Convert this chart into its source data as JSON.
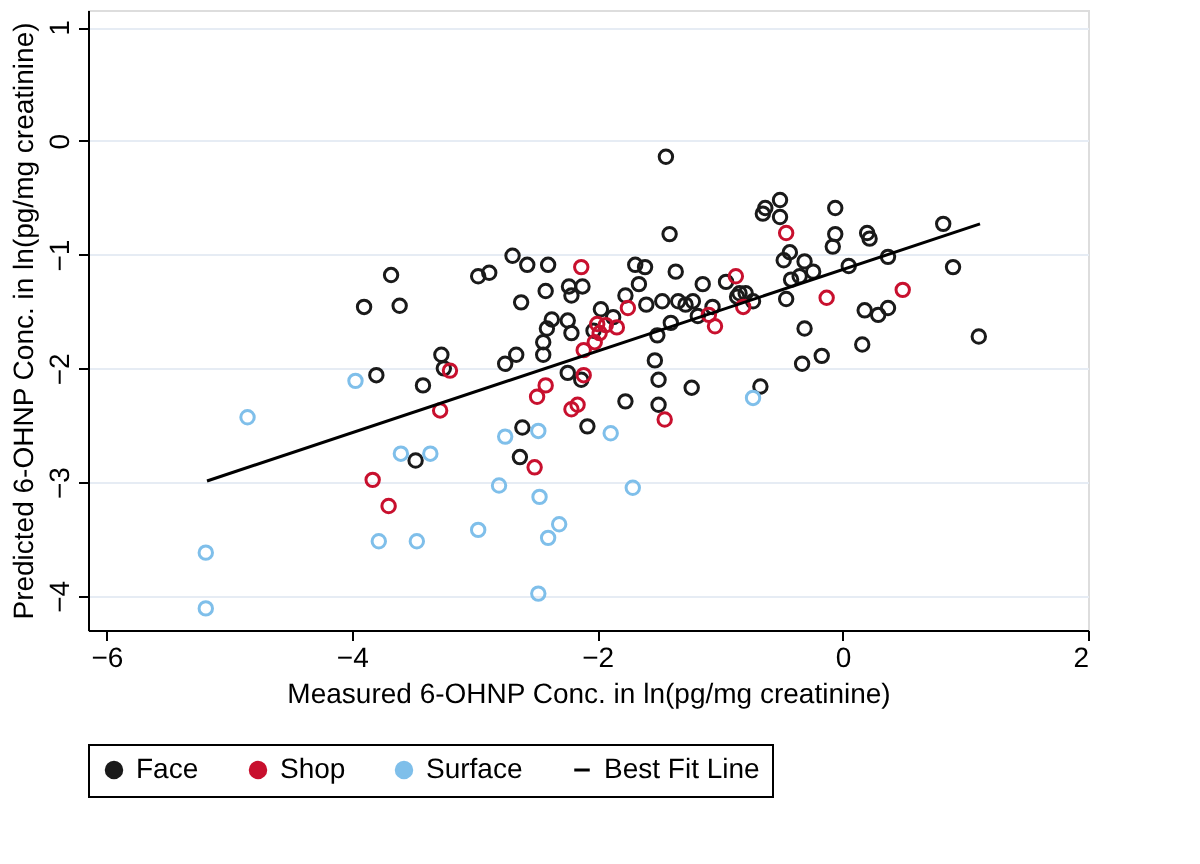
{
  "chart_data": {
    "type": "scatter",
    "xlabel": "Measured 6-OHNP Conc. in ln(pg/mg creatinine)",
    "ylabel": "Predicted 6-OHNP Conc. in ln(pg/mg creatinine)",
    "xlim": [
      -6.15,
      2.0
    ],
    "ylim": [
      -4.3,
      1.15
    ],
    "xticks": [
      -6,
      -4,
      -2,
      0,
      2
    ],
    "yticks": [
      -4,
      -3,
      -2,
      -1,
      0,
      1
    ],
    "grid": "y",
    "legend": "bottom",
    "series": [
      {
        "name": "Face",
        "marker": "circle",
        "color": "#1a1a1a",
        "x": [
          -2.69,
          -2.57,
          -2.4,
          -2.97,
          -2.88,
          -3.68,
          -3.9,
          -3.61,
          -2.42,
          -2.23,
          -2.12,
          -2.21,
          -2.62,
          -2.37,
          -2.24,
          -2.41,
          -2.21,
          -2.44,
          -2.44,
          -2.66,
          -2.75,
          -3.27,
          -3.25,
          -3.8,
          -3.42,
          -2.24,
          -2.13,
          -2.08,
          -2.61,
          -2.63,
          -3.48,
          -1.44,
          -0.51,
          -0.63,
          -0.65,
          -0.51,
          -0.06,
          -1.41,
          -0.06,
          -0.08,
          0.2,
          0.22,
          0.82,
          0.9,
          0.37,
          0.05,
          -0.43,
          -0.48,
          -0.31,
          -0.24,
          -0.35,
          -0.42,
          -1.69,
          -1.61,
          -1.36,
          -1.66,
          -1.14,
          -0.95,
          -0.84,
          -0.79,
          -0.86,
          -0.73,
          -0.46,
          -1.77,
          -1.47,
          -1.34,
          -1.28,
          -1.22,
          -1.6,
          -1.06,
          -1.18,
          -1.4,
          -1.51,
          -1.97,
          -1.87,
          -2.03,
          -0.31,
          0.18,
          0.29,
          0.37,
          1.11,
          0.16,
          -0.17,
          -0.33,
          -1.53,
          -1.5,
          -1.23,
          -0.67,
          -1.77,
          -1.5
        ],
        "values": [
          -1.01,
          -1.09,
          -1.09,
          -1.19,
          -1.16,
          -1.18,
          -1.46,
          -1.45,
          -1.32,
          -1.28,
          -1.28,
          -1.36,
          -1.42,
          -1.57,
          -1.58,
          -1.65,
          -1.69,
          -1.77,
          -1.88,
          -1.88,
          -1.96,
          -1.88,
          -2.0,
          -2.06,
          -2.15,
          -2.04,
          -2.1,
          -2.51,
          -2.52,
          -2.78,
          -2.81,
          -0.14,
          -0.52,
          -0.59,
          -0.64,
          -0.67,
          -0.59,
          -0.82,
          -0.82,
          -0.93,
          -0.81,
          -0.86,
          -0.73,
          -1.11,
          -1.02,
          -1.1,
          -0.98,
          -1.05,
          -1.06,
          -1.15,
          -1.19,
          -1.22,
          -1.09,
          -1.11,
          -1.15,
          -1.26,
          -1.26,
          -1.24,
          -1.34,
          -1.34,
          -1.37,
          -1.41,
          -1.39,
          -1.36,
          -1.41,
          -1.41,
          -1.44,
          -1.41,
          -1.44,
          -1.46,
          -1.54,
          -1.6,
          -1.71,
          -1.48,
          -1.55,
          -1.67,
          -1.65,
          -1.49,
          -1.53,
          -1.47,
          -1.72,
          -1.79,
          -1.89,
          -1.96,
          -1.93,
          -2.1,
          -2.17,
          -2.16,
          -2.29,
          -2.32
        ]
      },
      {
        "name": "Shop",
        "marker": "circle",
        "color": "#c8102e",
        "x": [
          -2.13,
          -3.2,
          -3.28,
          -2.49,
          -2.42,
          -2.11,
          -2.21,
          -2.16,
          -2.11,
          -2.51,
          -3.83,
          -3.7,
          -0.46,
          -0.87,
          -0.81,
          -1.09,
          -1.04,
          -0.13,
          0.49,
          -1.75,
          -1.84,
          -1.93,
          -2.0,
          -1.98,
          -2.02,
          -1.45
        ],
        "values": [
          -1.11,
          -2.02,
          -2.37,
          -2.25,
          -2.15,
          -2.06,
          -2.36,
          -2.32,
          -1.84,
          -2.87,
          -2.98,
          -3.21,
          -0.81,
          -1.19,
          -1.46,
          -1.53,
          -1.63,
          -1.38,
          -1.31,
          -1.47,
          -1.64,
          -1.62,
          -1.61,
          -1.69,
          -1.77,
          -2.45
        ]
      },
      {
        "name": "Surface",
        "marker": "circle",
        "color": "#7fbfea",
        "x": [
          -3.97,
          -4.85,
          -3.6,
          -3.36,
          -2.75,
          -2.48,
          -2.8,
          -2.47,
          -2.31,
          -2.4,
          -2.97,
          -3.78,
          -3.47,
          -5.19,
          -5.19,
          -2.48,
          -1.89,
          -0.73,
          -1.71
        ],
        "values": [
          -2.11,
          -2.43,
          -2.75,
          -2.75,
          -2.6,
          -2.55,
          -3.03,
          -3.13,
          -3.37,
          -3.49,
          -3.42,
          -3.52,
          -3.52,
          -3.62,
          -4.11,
          -3.98,
          -2.57,
          -2.26,
          -3.05
        ]
      },
      {
        "name": "Best Fit Line",
        "type": "line",
        "marker": "none",
        "line_style": "solid",
        "color": "#000000",
        "x": [
          -5.18,
          1.12
        ],
        "values": [
          -2.99,
          -0.73
        ]
      }
    ]
  }
}
